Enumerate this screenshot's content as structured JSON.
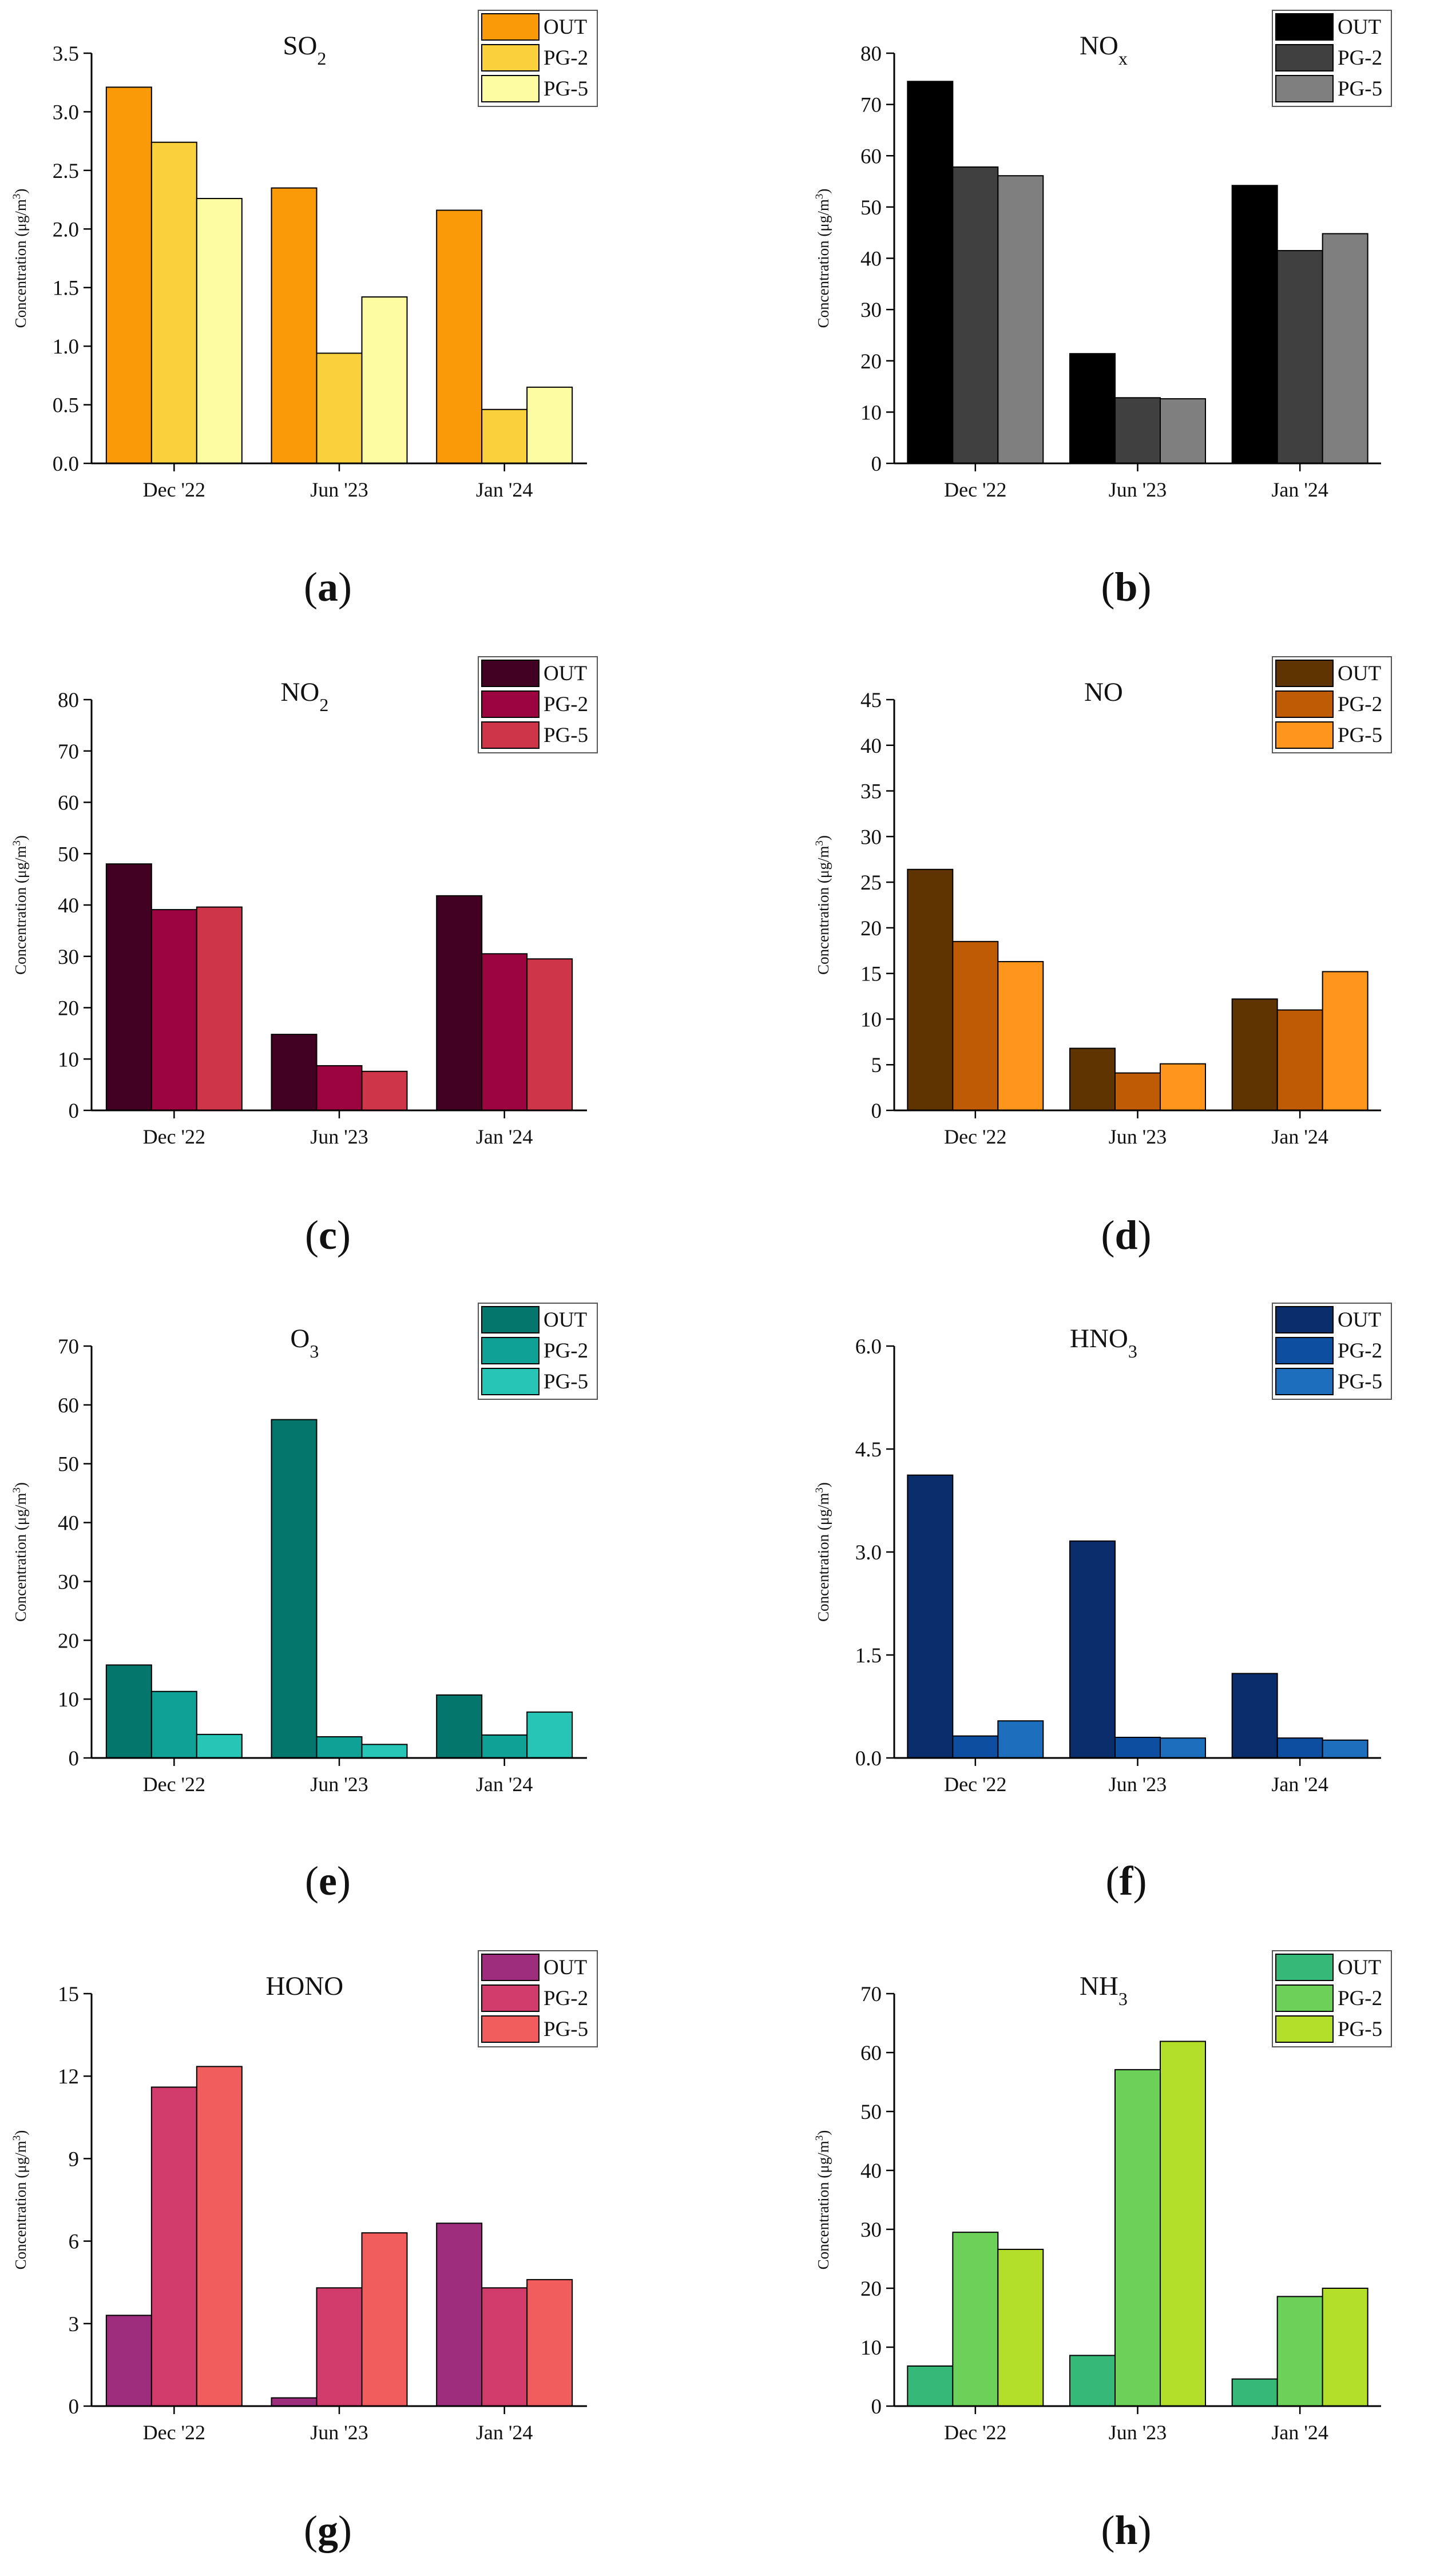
{
  "chart_data": [
    {
      "type": "bar",
      "panel": "a",
      "pollutant": "SO",
      "title_base": "SO",
      "title_script": "2",
      "script_type": "sub",
      "ylabel_base": "Concentration (μg/m",
      "ylabel_sup": "3",
      "ylabel_end": ")",
      "categories": [
        "Dec '22",
        "Jun '23",
        "Jan '24"
      ],
      "ylim": [
        0,
        3.5
      ],
      "yticks": [
        0,
        0.5,
        1,
        1.5,
        2,
        2.5,
        3,
        3.5
      ],
      "ytick_labels": [
        "0.0",
        "0.5",
        "1.0",
        "1.5",
        "2.0",
        "2.5",
        "3.0",
        "3.5"
      ],
      "series": [
        {
          "name": "OUT",
          "color": "#fa9a08",
          "values": [
            3.21,
            2.35,
            2.16
          ]
        },
        {
          "name": "PG-2",
          "color": "#fad03d",
          "values": [
            2.74,
            0.94,
            0.46
          ]
        },
        {
          "name": "PG-5",
          "color": "#fdfca3",
          "values": [
            2.26,
            1.42,
            0.65
          ]
        }
      ]
    },
    {
      "type": "bar",
      "panel": "b",
      "pollutant": "NO",
      "title_base": "NO",
      "title_script": "x",
      "script_type": "sub",
      "ylabel_base": "Concentration (μg/m",
      "ylabel_sup": "3",
      "ylabel_end": ")",
      "categories": [
        "Dec '22",
        "Jun '23",
        "Jan '24"
      ],
      "ylim": [
        0,
        80
      ],
      "yticks": [
        0,
        10,
        20,
        30,
        40,
        50,
        60,
        70,
        80
      ],
      "ytick_labels": [
        "0",
        "10",
        "20",
        "30",
        "40",
        "50",
        "60",
        "70",
        "80"
      ],
      "series": [
        {
          "name": "OUT",
          "color": "#000000",
          "values": [
            74.5,
            21.4,
            54.2
          ]
        },
        {
          "name": "PG-2",
          "color": "#404040",
          "values": [
            57.8,
            12.8,
            41.5
          ]
        },
        {
          "name": "PG-5",
          "color": "#7f7f7f",
          "values": [
            56.1,
            12.6,
            44.8
          ]
        }
      ]
    },
    {
      "type": "bar",
      "panel": "c",
      "pollutant": "NO",
      "title_base": "NO",
      "title_script": "2",
      "script_type": "sub",
      "ylabel_base": "Concentration (μg/m",
      "ylabel_sup": "3",
      "ylabel_end": ")",
      "categories": [
        "Dec '22",
        "Jun '23",
        "Jan '24"
      ],
      "ylim": [
        0,
        80
      ],
      "yticks": [
        0,
        10,
        20,
        30,
        40,
        50,
        60,
        70,
        80
      ],
      "ytick_labels": [
        "0",
        "10",
        "20",
        "30",
        "40",
        "50",
        "60",
        "70",
        "80"
      ],
      "series": [
        {
          "name": "OUT",
          "color": "#420022",
          "values": [
            48.0,
            14.8,
            41.8
          ]
        },
        {
          "name": "PG-2",
          "color": "#9c0440",
          "values": [
            39.1,
            8.7,
            30.5
          ]
        },
        {
          "name": "PG-5",
          "color": "#cf3549",
          "values": [
            39.6,
            7.6,
            29.5
          ]
        }
      ]
    },
    {
      "type": "bar",
      "panel": "d",
      "pollutant": "NO",
      "title_base": "NO",
      "title_script": "",
      "script_type": "sub",
      "ylabel_base": "Concentration (μg/m",
      "ylabel_sup": "3",
      "ylabel_end": ")",
      "categories": [
        "Dec '22",
        "Jun '23",
        "Jan '24"
      ],
      "ylim": [
        0,
        45
      ],
      "yticks": [
        0,
        5,
        10,
        15,
        20,
        25,
        30,
        35,
        40,
        45
      ],
      "ytick_labels": [
        "0",
        "5",
        "10",
        "15",
        "20",
        "25",
        "30",
        "35",
        "40",
        "45"
      ],
      "series": [
        {
          "name": "OUT",
          "color": "#5f3400",
          "values": [
            26.4,
            6.8,
            12.2
          ]
        },
        {
          "name": "PG-2",
          "color": "#bf5b04",
          "values": [
            18.5,
            4.1,
            11.0
          ]
        },
        {
          "name": "PG-5",
          "color": "#ff951c",
          "values": [
            16.3,
            5.1,
            15.2
          ]
        }
      ]
    },
    {
      "type": "bar",
      "panel": "e",
      "pollutant": "O",
      "title_base": "O",
      "title_script": "3",
      "script_type": "sub",
      "ylabel_base": "Concentration (μg/m",
      "ylabel_sup": "3",
      "ylabel_end": ")",
      "categories": [
        "Dec '22",
        "Jun '23",
        "Jan '24"
      ],
      "ylim": [
        0,
        70
      ],
      "yticks": [
        0,
        10,
        20,
        30,
        40,
        50,
        60,
        70
      ],
      "ytick_labels": [
        "0",
        "10",
        "20",
        "30",
        "40",
        "50",
        "60",
        "70"
      ],
      "series": [
        {
          "name": "OUT",
          "color": "#05766c",
          "values": [
            15.8,
            57.5,
            10.7
          ]
        },
        {
          "name": "PG-2",
          "color": "#0fa196",
          "values": [
            11.3,
            3.6,
            3.9
          ]
        },
        {
          "name": "PG-5",
          "color": "#27c5b6",
          "values": [
            4.0,
            2.3,
            7.8
          ]
        }
      ]
    },
    {
      "type": "bar",
      "panel": "f",
      "pollutant": "HNO",
      "title_base": "HNO",
      "title_script": "3",
      "script_type": "sub",
      "ylabel_base": "Concentration (μg/m",
      "ylabel_sup": "3",
      "ylabel_end": ")",
      "categories": [
        "Dec '22",
        "Jun '23",
        "Jan '24"
      ],
      "ylim": [
        0,
        6
      ],
      "yticks": [
        0,
        1.5,
        3,
        4.5,
        6
      ],
      "ytick_labels": [
        "0.0",
        "1.5",
        "3.0",
        "4.5",
        "6.0"
      ],
      "series": [
        {
          "name": "OUT",
          "color": "#0a2e6b",
          "values": [
            4.12,
            3.16,
            1.23
          ]
        },
        {
          "name": "PG-2",
          "color": "#0d4ea0",
          "values": [
            0.32,
            0.3,
            0.29
          ]
        },
        {
          "name": "PG-5",
          "color": "#1d6ebd",
          "values": [
            0.54,
            0.29,
            0.26
          ]
        }
      ]
    },
    {
      "type": "bar",
      "panel": "g",
      "pollutant": "HONO",
      "title_base": "HONO",
      "title_script": "",
      "script_type": "sub",
      "ylabel_base": "Concentration (μg/m",
      "ylabel_sup": "3",
      "ylabel_end": ")",
      "categories": [
        "Dec '22",
        "Jun '23",
        "Jan '24"
      ],
      "ylim": [
        0,
        15
      ],
      "yticks": [
        0,
        3,
        6,
        9,
        12,
        15
      ],
      "ytick_labels": [
        "0",
        "3",
        "6",
        "9",
        "12",
        "15"
      ],
      "series": [
        {
          "name": "OUT",
          "color": "#9f2d7e",
          "values": [
            3.3,
            0.3,
            6.65
          ]
        },
        {
          "name": "PG-2",
          "color": "#d23c6c",
          "values": [
            11.6,
            4.3,
            4.3
          ]
        },
        {
          "name": "PG-5",
          "color": "#f15d5c",
          "values": [
            12.35,
            6.3,
            4.6
          ]
        }
      ]
    },
    {
      "type": "bar",
      "panel": "h",
      "pollutant": "NH",
      "title_base": "NH",
      "title_script": "3",
      "script_type": "sub",
      "ylabel_base": "Concentration (μg/m",
      "ylabel_sup": "3",
      "ylabel_end": ")",
      "categories": [
        "Dec '22",
        "Jun '23",
        "Jan '24"
      ],
      "ylim": [
        0,
        70
      ],
      "yticks": [
        0,
        10,
        20,
        30,
        40,
        50,
        60,
        70
      ],
      "ytick_labels": [
        "0",
        "10",
        "20",
        "30",
        "40",
        "50",
        "60",
        "70"
      ],
      "series": [
        {
          "name": "OUT",
          "color": "#36b978",
          "values": [
            6.8,
            8.6,
            4.6
          ]
        },
        {
          "name": "PG-2",
          "color": "#6bd159",
          "values": [
            29.5,
            57.1,
            18.6
          ]
        },
        {
          "name": "PG-5",
          "color": "#b3df2b",
          "values": [
            26.6,
            61.9,
            20.0
          ]
        }
      ]
    }
  ]
}
